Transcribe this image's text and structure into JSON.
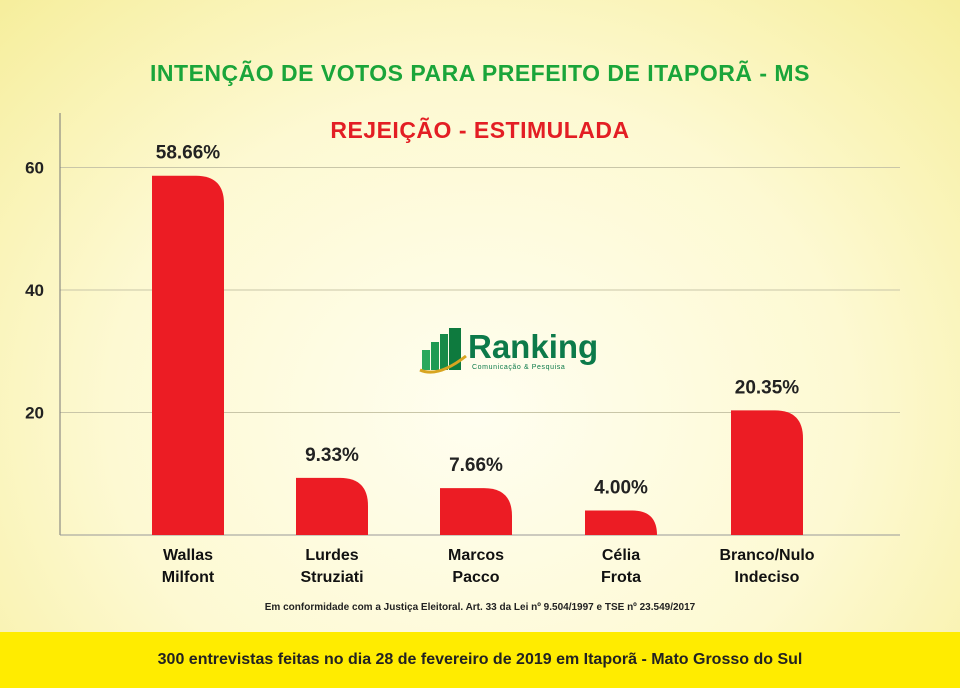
{
  "chart_data": {
    "type": "bar",
    "title": "INTENÇÃO DE VOTOS PARA PREFEITO DE ITAPORÃ - MS",
    "subtitle": "REJEIÇÃO - ESTIMULADA",
    "categories": [
      [
        "Wallas",
        "Milfont"
      ],
      [
        "Lurdes",
        "Struziati"
      ],
      [
        "Marcos",
        "Pacco"
      ],
      [
        "Célia",
        "Frota"
      ],
      [
        "Branco/Nulo",
        "Indeciso"
      ]
    ],
    "values": [
      58.66,
      9.33,
      7.66,
      4.0,
      20.35
    ],
    "data_labels": [
      "58.66%",
      "9.33%",
      "7.66%",
      "4.00%",
      "20.35%"
    ],
    "yticks": [
      20,
      40,
      60
    ],
    "ylim": [
      0,
      68
    ],
    "grid": true,
    "bar_color": "#ec1c24"
  },
  "logo": {
    "name": "Ranking",
    "tagline": "Comunicação & Pesquisa"
  },
  "note": "Em conformidade com a Justiça Eleitoral. Art. 33 da Lei nº 9.504/1997 e TSE nº 23.549/2017",
  "footer": "300 entrevistas feitas no dia 28 de fevereiro de 2019 em Itaporã - Mato Grosso do Sul"
}
